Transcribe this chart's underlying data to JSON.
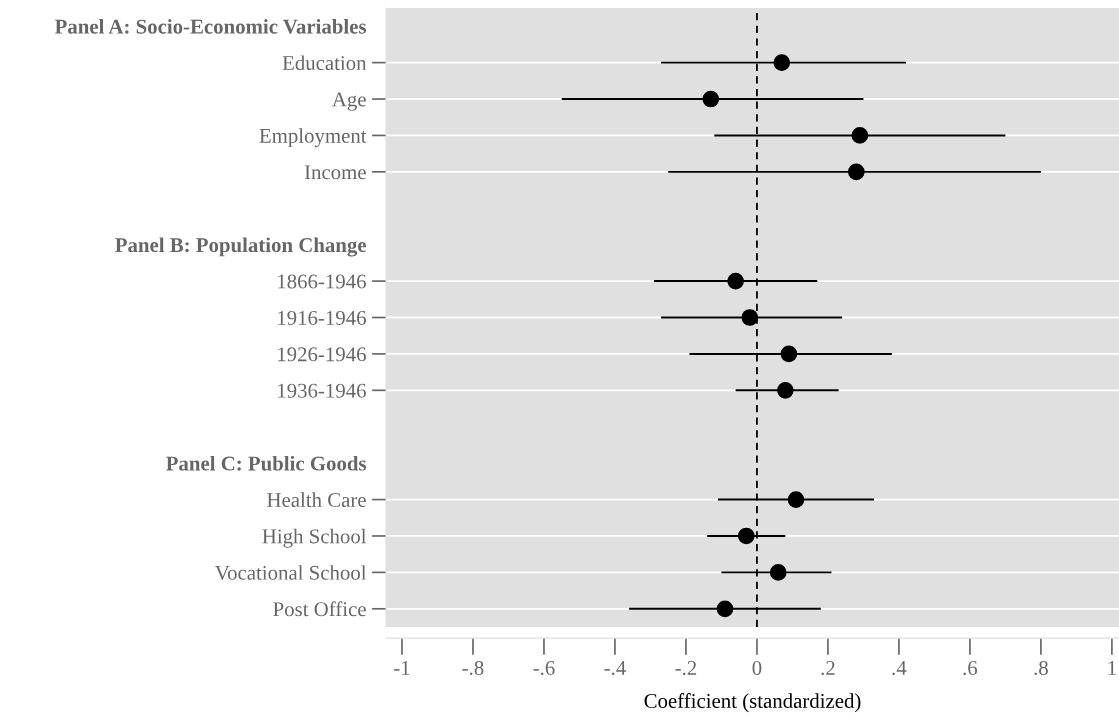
{
  "chart_data": {
    "type": "scatter",
    "orientation": "horizontal",
    "xlabel": "Coefficient (standardized)",
    "categories": [
      "Panel A: Socio-Economic Variables",
      "Education",
      "Age",
      "Employment",
      "Income",
      null,
      "Panel B: Population Change",
      "1866-1946",
      "1916-1946",
      "1926-1946",
      "1936-1946",
      null,
      "Panel C: Public Goods",
      "Health Care",
      "High School",
      "Vocational School",
      "Post Office"
    ],
    "values": [
      null,
      0.07,
      -0.13,
      0.29,
      0.28,
      null,
      null,
      -0.06,
      -0.02,
      0.09,
      0.08,
      null,
      null,
      0.11,
      -0.03,
      0.06,
      -0.09
    ],
    "errors": [
      null,
      [
        -0.27,
        0.42
      ],
      [
        -0.55,
        0.3
      ],
      [
        -0.12,
        0.7
      ],
      [
        -0.25,
        0.8
      ],
      null,
      null,
      [
        -0.29,
        0.17
      ],
      [
        -0.27,
        0.24
      ],
      [
        -0.19,
        0.38
      ],
      [
        -0.06,
        0.23
      ],
      null,
      null,
      [
        -0.11,
        0.33
      ],
      [
        -0.14,
        0.08
      ],
      [
        -0.1,
        0.21
      ],
      [
        -0.36,
        0.18
      ]
    ],
    "color": "#000000",
    "marker": "circle",
    "grid": "y",
    "xlim": [
      -1.045,
      1.02
    ],
    "xticks": [
      -1,
      {
        "value": -0.8,
        "label": "-.8"
      },
      {
        "value": -0.6,
        "label": "-.6"
      },
      {
        "value": -0.4,
        "label": "-.4"
      },
      {
        "value": -0.2,
        "label": "-.2"
      },
      0,
      {
        "value": 0.2,
        "label": ".2"
      },
      {
        "value": 0.4,
        "label": ".4"
      },
      {
        "value": 0.6,
        "label": ".6"
      },
      {
        "value": 0.8,
        "label": ".8"
      },
      1
    ],
    "ref_lines": [
      {
        "axis": "x",
        "value": 0,
        "color": "#000000",
        "line_style": "dashed"
      }
    ]
  }
}
